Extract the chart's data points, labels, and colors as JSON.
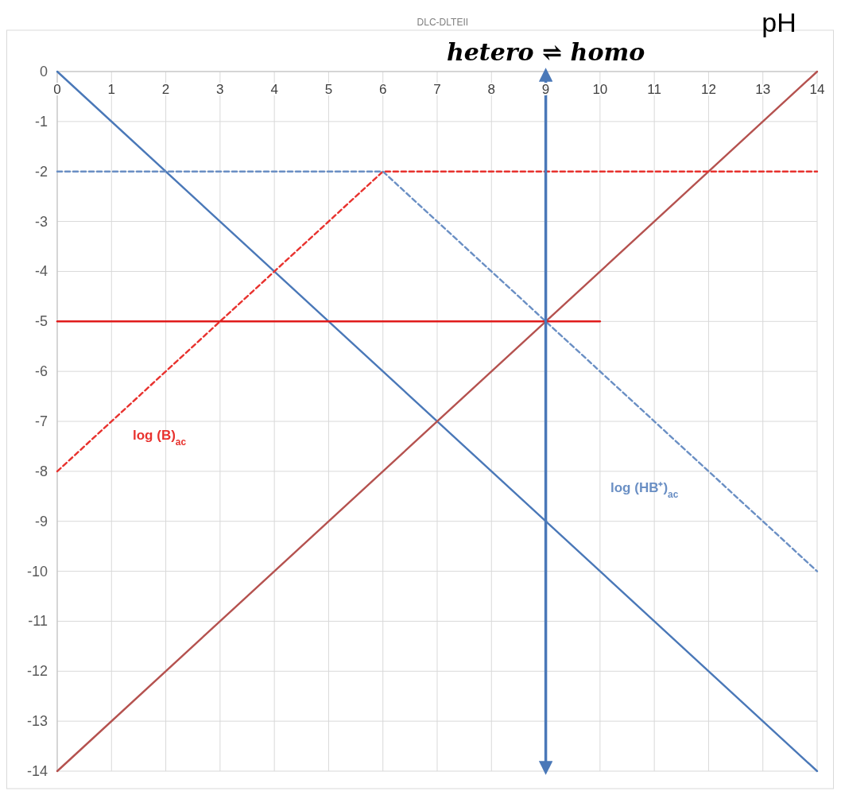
{
  "chart_data": {
    "type": "line",
    "title": "hetero ⇌ homo",
    "xlabel": "pH",
    "annotations": [
      "DLC-DLTEII"
    ],
    "xlim": [
      0,
      14
    ],
    "xticks": [
      0,
      1,
      2,
      3,
      4,
      5,
      6,
      7,
      8,
      9,
      10,
      11,
      12,
      13,
      14
    ],
    "ylim": [
      -14,
      0
    ],
    "yticks": [
      0,
      -1,
      -2,
      -3,
      -4,
      -5,
      -6,
      -7,
      -8,
      -9,
      -10,
      -11,
      -12,
      -13,
      -14
    ],
    "grid": true,
    "line_style": "solid",
    "marker": "none",
    "series": [
      {
        "x": [
          0,
          14
        ],
        "values": [
          0,
          -14
        ],
        "color": "#4a78b8"
      },
      {
        "x": [
          0,
          14
        ],
        "values": [
          -14,
          0
        ],
        "color": "#b5524f"
      },
      {
        "name": "log (B)$_{ac}$",
        "x": [
          0,
          6,
          14
        ],
        "values": [
          -8,
          -2,
          -2
        ],
        "color": "#e8322e",
        "line_style": "dashed"
      },
      {
        "name": "log (HB⁺)$_{ac}$",
        "x": [
          0,
          6,
          14
        ],
        "values": [
          -2,
          -2,
          -10
        ],
        "color": "#6a8fc4",
        "line_style": "dashed"
      },
      {
        "x": [
          0,
          10
        ],
        "values": [
          -5,
          -5
        ],
        "color": "#e01b1b"
      }
    ],
    "ref_lines": [
      {
        "axis": "x",
        "value": 9,
        "color": "#4a78b8"
      }
    ]
  }
}
